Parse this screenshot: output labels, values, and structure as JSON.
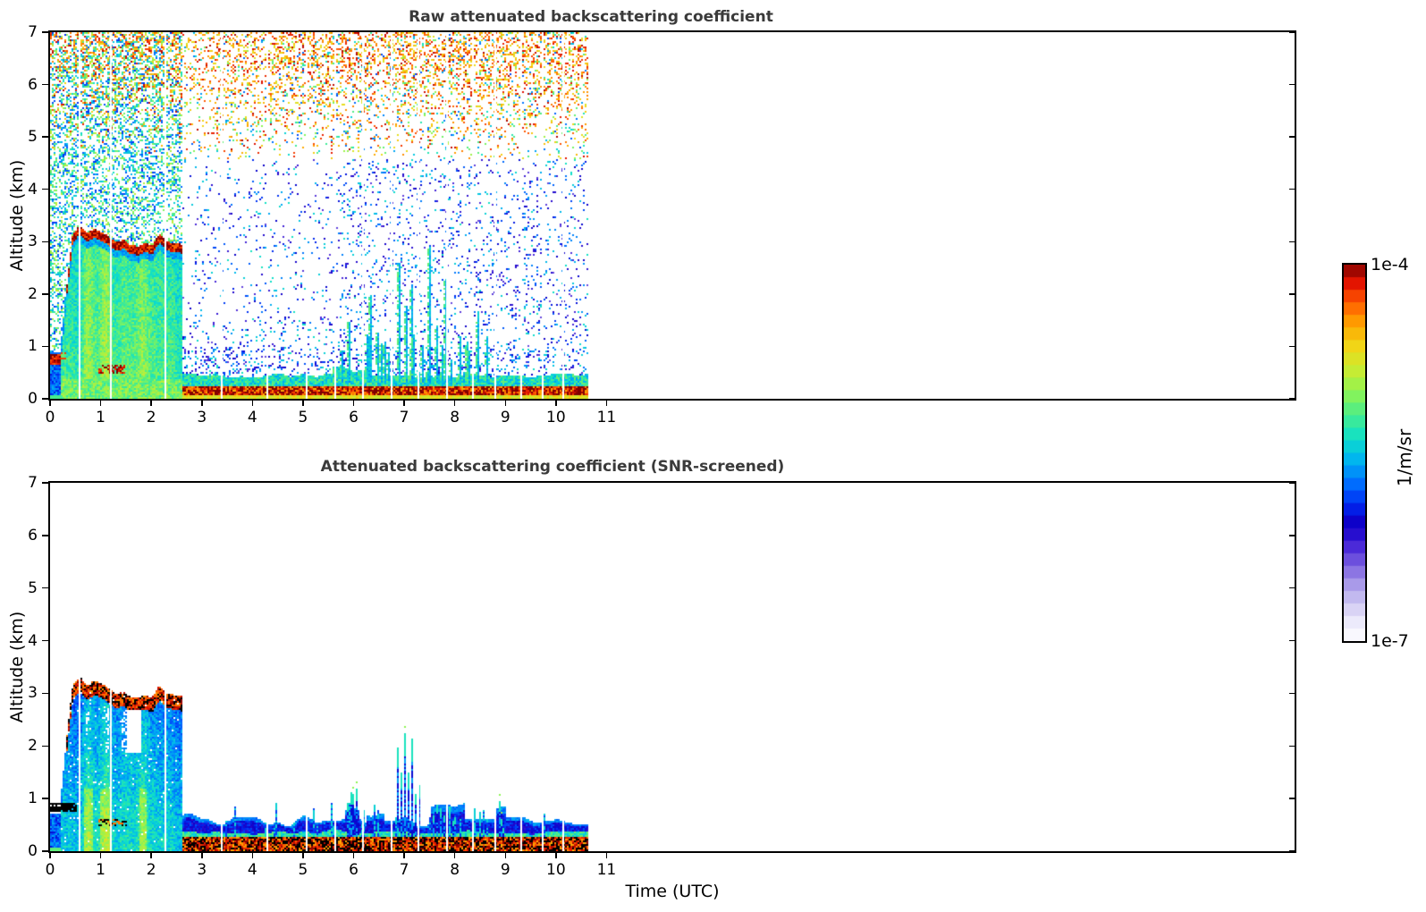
{
  "figure": {
    "background": "#ffffff",
    "title_color": "#3a3a3a"
  },
  "chart_data": [
    {
      "type": "heatmap",
      "title": "Raw attenuated backscattering coefficient",
      "xlabel": "",
      "ylabel": "Altitude (km)",
      "xlim": [
        0,
        24.6
      ],
      "ylim": [
        0,
        7
      ],
      "x_ticks": [
        0,
        1,
        2,
        3,
        4,
        5,
        6,
        7,
        8,
        9,
        10,
        11
      ],
      "y_ticks": [
        0,
        1,
        2,
        3,
        4,
        5,
        6,
        7
      ],
      "grid": false,
      "colormap": "jet with white at low end",
      "value_range": [
        "1e-7",
        "1e-4"
      ],
      "units": "1/m/sr",
      "data_time_extent": [
        0,
        10.65
      ],
      "features": {
        "aerosol_plume": {
          "t_range": [
            0.18,
            2.6
          ],
          "top_km": 3.05,
          "description": "solid green/yellow plume to ~3 km capped by red layer 2.7-3.3 km"
        },
        "early_column": {
          "t_range": [
            0,
            0.18
          ],
          "top_km": 0.9,
          "red_band_km": [
            0.72,
            0.88
          ]
        },
        "elevated_red_blob": {
          "t_range": [
            0.95,
            1.45
          ],
          "alt_km": [
            0.5,
            0.68
          ]
        },
        "surface_layer": {
          "t_range": [
            2.6,
            10.65
          ],
          "top_km": 0.45,
          "description": "red/dark-red mottled layer under yellow-green top"
        },
        "noise_speckle": "dense green/cyan speckle above plume before 2.6 UTC; orange/red speckle increasing above ~5 km; sparse blue speckle below 4.5 km after 2.6 UTC",
        "vertical_spikes": {
          "t_range": [
            5.75,
            8.65
          ],
          "spikes": [
            [
              5.92,
              1.5
            ],
            [
              6.32,
              2.0
            ],
            [
              6.62,
              1.1
            ],
            [
              6.9,
              2.6
            ],
            [
              7.05,
              1.8
            ],
            [
              7.15,
              2.2
            ],
            [
              7.5,
              2.9
            ],
            [
              7.65,
              1.4
            ],
            [
              7.82,
              2.3
            ],
            [
              8.1,
              1.2
            ],
            [
              8.45,
              1.7
            ],
            [
              8.62,
              1.2
            ]
          ]
        }
      }
    },
    {
      "type": "heatmap",
      "title": "Attenuated backscattering coefficient (SNR-screened)",
      "xlabel": "Time (UTC)",
      "ylabel": "Altitude (km)",
      "xlim": [
        0,
        24.6
      ],
      "ylim": [
        0,
        7
      ],
      "x_ticks": [
        0,
        1,
        2,
        3,
        4,
        5,
        6,
        7,
        8,
        9,
        10,
        11
      ],
      "y_ticks": [
        0,
        1,
        2,
        3,
        4,
        5,
        6,
        7
      ],
      "grid": false,
      "colormap": "jet with white at low end",
      "value_range": [
        "1e-7",
        "1e-4"
      ],
      "units": "1/m/sr",
      "data_time_extent": [
        0,
        10.65
      ],
      "features": {
        "aerosol_plume": {
          "t_range": [
            0.18,
            2.6
          ],
          "top_km": 3.05,
          "description": "green/cyan plume with orange-red-black cap, white holes 1.9-2.7 km around 0.7-1.8 UTC"
        },
        "black_band": {
          "t_range": [
            0,
            0.5
          ],
          "alt_km": [
            0.76,
            0.93
          ]
        },
        "black_dotted_line": {
          "t_range": [
            0.95,
            1.5
          ],
          "alt_km": [
            0.5,
            0.64
          ]
        },
        "surface_layer": {
          "t_range": [
            2.6,
            10.65
          ],
          "top_km": 0.42,
          "description": "black/red/orange mottled surface layer topped by undulating royal-blue fringe"
        },
        "spike_clusters": [
          {
            "t_range": [
              5.85,
              6.1
            ],
            "top_km": 1.5
          },
          {
            "t_range": [
              6.85,
              7.35
            ],
            "top_km": 2.3
          },
          {
            "t_range": [
              7.55,
              8.15
            ],
            "top_km": 0.95
          },
          {
            "t_range": [
              8.85,
              9.0
            ],
            "top_km": 1.0
          }
        ]
      }
    }
  ],
  "colorbar": {
    "top_label": "1e-4",
    "bottom_label": "1e-7",
    "units": "1/m/sr",
    "stops": [
      [
        "0.00",
        "#ffffff"
      ],
      [
        "0.05",
        "#eceafb"
      ],
      [
        "0.10",
        "#cfc8f2"
      ],
      [
        "0.15",
        "#a99ae9"
      ],
      [
        "0.20",
        "#7d62e0"
      ],
      [
        "0.25",
        "#4b2ad8"
      ],
      [
        "0.28",
        "#2a0fd0"
      ],
      [
        "0.32",
        "#0a00c8"
      ],
      [
        "0.36",
        "#0028f0"
      ],
      [
        "0.42",
        "#0070ff"
      ],
      [
        "0.48",
        "#00b4f0"
      ],
      [
        "0.54",
        "#0fe0c8"
      ],
      [
        "0.60",
        "#48ec8c"
      ],
      [
        "0.66",
        "#8cf455"
      ],
      [
        "0.72",
        "#c8ec32"
      ],
      [
        "0.78",
        "#f0d818"
      ],
      [
        "0.84",
        "#ffa500"
      ],
      [
        "0.90",
        "#ff5a00"
      ],
      [
        "0.95",
        "#e31400"
      ],
      [
        "1.00",
        "#7f0000"
      ]
    ]
  },
  "render_params": {
    "seed": 42,
    "gaps_t": [
      0.57,
      1.18,
      2.26,
      3.38,
      4.28,
      5.05,
      5.62,
      6.17,
      6.73,
      7.27,
      7.83,
      8.35,
      8.78,
      9.3,
      9.72,
      10.12
    ]
  }
}
